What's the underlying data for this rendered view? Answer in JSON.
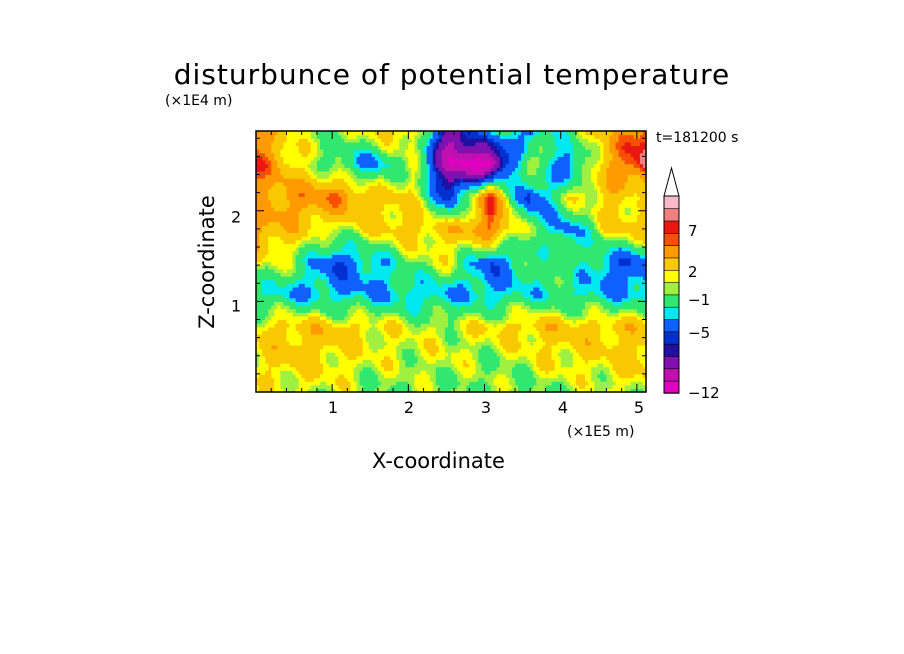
{
  "chart_data": {
    "type": "heatmap",
    "title": "disturbunce of potential temperature",
    "xlabel": "X-coordinate",
    "ylabel": "Z-coordinate",
    "x_unit": "(×1E5 m)",
    "y_unit": "(×1E4 m)",
    "time_label": "t=181200 s",
    "xlim": [
      0,
      5.12
    ],
    "ylim": [
      0,
      2.88
    ],
    "x_ticks": [
      "1",
      "2",
      "3",
      "4",
      "5"
    ],
    "y_ticks": [
      "1",
      "2"
    ],
    "colorbar": {
      "tick_labels": [
        "7",
        "2",
        "−1",
        "−5",
        "−12"
      ],
      "extend": "max",
      "levels": [
        -12,
        -10,
        -8,
        -6,
        -5,
        -4,
        -2,
        -1,
        1,
        2,
        3,
        5,
        7,
        8,
        9,
        11
      ],
      "colors": [
        "#e000c0",
        "#c010b0",
        "#8010b0",
        "#2010a0",
        "#0030d0",
        "#1060ff",
        "#00e8f0",
        "#30e870",
        "#a0f040",
        "#ffff00",
        "#f8c800",
        "#ff9a00",
        "#f85000",
        "#e81810",
        "#f08080",
        "#f8b8c8"
      ]
    },
    "x": [
      0.0,
      0.512,
      1.024,
      1.536,
      2.048,
      2.56,
      3.072,
      3.584,
      4.096,
      4.608,
      5.12
    ],
    "z": [
      0.0,
      0.36,
      0.72,
      1.08,
      1.44,
      1.8,
      2.16,
      2.52,
      2.88
    ],
    "values": [
      [
        2,
        2,
        2,
        1,
        1,
        1,
        1,
        1,
        1,
        2,
        2
      ],
      [
        3,
        4,
        3,
        2,
        2,
        2,
        1,
        2,
        3,
        3,
        4
      ],
      [
        3,
        4,
        4,
        3,
        2,
        2,
        3,
        4,
        4,
        4,
        4
      ],
      [
        -1,
        -2,
        -2,
        -2,
        -2,
        -2,
        -2,
        -1,
        -1,
        -2,
        -2
      ],
      [
        3,
        1,
        -4,
        -2,
        1,
        2,
        -4,
        0,
        1,
        -3,
        -4
      ],
      [
        6,
        4,
        2,
        3,
        4,
        4,
        7,
        1,
        -3,
        3,
        5
      ],
      [
        5,
        6,
        7,
        4,
        3,
        -5,
        8,
        -5,
        2,
        4,
        2
      ],
      [
        8,
        3,
        0,
        -3,
        2,
        -10,
        -12,
        3,
        -4,
        5,
        10
      ],
      [
        6,
        2,
        1,
        3,
        4,
        -8,
        0,
        -3,
        1,
        4,
        9
      ]
    ]
  }
}
